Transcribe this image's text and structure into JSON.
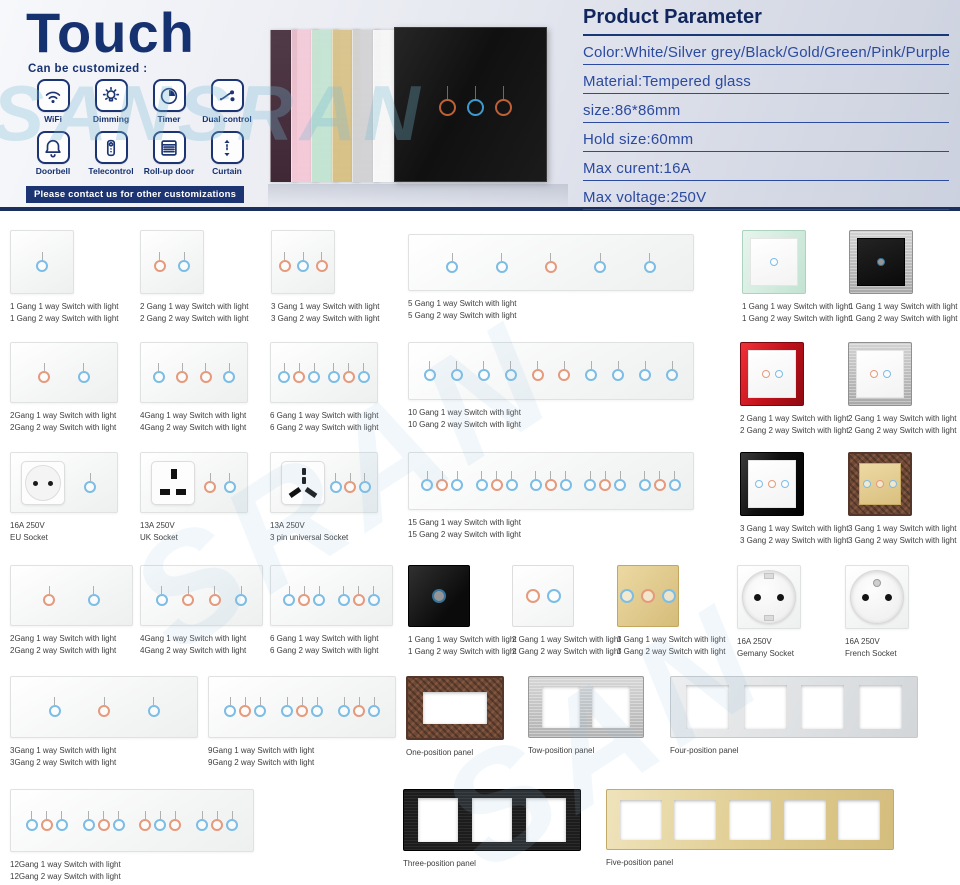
{
  "header": {
    "title": "Touch",
    "customize_label": "Can be customized :",
    "features": [
      {
        "icon": "wifi-icon",
        "label": "WiFi"
      },
      {
        "icon": "dimming-icon",
        "label": "Dimming"
      },
      {
        "icon": "timer-icon",
        "label": "Timer"
      },
      {
        "icon": "dual-control-icon",
        "label": "Dual control"
      },
      {
        "icon": "doorbell-icon",
        "label": "Doorbell"
      },
      {
        "icon": "telecontrol-icon",
        "label": "Telecontrol"
      },
      {
        "icon": "rollup-door-icon",
        "label": "Roll-up door"
      },
      {
        "icon": "curtain-icon",
        "label": "Curtain"
      }
    ],
    "banner": "Please contact us for other customizations"
  },
  "parameters": {
    "title": "Product Parameter",
    "rows": [
      "Color:White/Silver grey/Black/Gold/Green/Pink/Purple",
      "Material:Tempered glass",
      "size:86*86mm",
      "Hold size:60mm",
      "Max curent:16A",
      "Max voltage:250V"
    ]
  },
  "watermarks": {
    "header": "SANSRAN",
    "grid": [
      "SRAN",
      "SAN"
    ]
  },
  "hero": {
    "panel_colors": [
      "#402735",
      "#f4c9d7",
      "#c3e4d2",
      "#d8c186",
      "#d2d2d4",
      "#f7f7f7"
    ],
    "main_panel_color": "#141414",
    "ring_colors": [
      "#c06034",
      "#3b9bd0",
      "#c06034"
    ]
  },
  "colors": {
    "navy": "#1c3572",
    "param_blue": "#2b4aa0",
    "ring_blue": "#7cbde6",
    "ring_orange": "#e69a7c",
    "ring_dim_blue": "#35759c"
  },
  "grid": {
    "rows": [
      {
        "items": [
          {
            "type": "switch",
            "circles": [
              "blue"
            ],
            "caption": [
              "1 Gang 1 way Switch with light",
              "1 Gang 2 way Switch with light"
            ]
          },
          {
            "type": "switch",
            "circles": [
              "orange",
              "blue"
            ],
            "caption": [
              "2 Gang 1 way Switch with light",
              "2 Gang 2 way Switch with light"
            ]
          },
          {
            "type": "switch",
            "circles": [
              "orange",
              "blue",
              "orange"
            ],
            "caption": [
              "3 Gang 1 way Switch with light",
              "3 Gang 2 way Switch with light"
            ]
          },
          {
            "type": "switch",
            "circles": [
              "blue",
              "blue",
              "orange",
              "blue",
              "blue"
            ],
            "caption": [
              "5 Gang 1 way Switch with light",
              "5 Gang 2 way Switch with light"
            ]
          },
          {
            "type": "framed",
            "frame": "mint",
            "inner": "white",
            "circles": [
              "blue"
            ],
            "caption": [
              "1 Gang 1 way Switch with light",
              "1 Gang 2 way Switch with light"
            ]
          },
          {
            "type": "framed",
            "frame": "steel",
            "inner": "black",
            "circles": [
              "blue"
            ],
            "caption": [
              "1 Gang 1 way Switch with light",
              "1 Gang 2 way Switch with light"
            ]
          }
        ]
      },
      {
        "items": [
          {
            "type": "switch",
            "circles": [
              "orange",
              "blue"
            ],
            "caption": [
              "2Gang 1 way Switch with light",
              "2Gang 2 way Switch with light"
            ]
          },
          {
            "type": "switch",
            "circles": [
              "blue",
              "orange",
              "orange",
              "blue"
            ],
            "caption": [
              "4Gang 1 way Switch with light",
              "4Gang 2 way Switch with light"
            ]
          },
          {
            "type": "switch",
            "groups": [
              [
                "blue",
                "orange",
                "blue"
              ],
              [
                "blue",
                "orange",
                "blue"
              ]
            ],
            "caption": [
              "6 Gang 1 way Switch with light",
              "6 Gang 2 way Switch with light"
            ]
          },
          {
            "type": "switch",
            "circles": [
              "blue",
              "blue",
              "blue",
              "blue",
              "orange",
              "orange",
              "blue",
              "blue",
              "blue",
              "blue"
            ],
            "caption": [
              "10 Gang 1 way Switch with light",
              "10 Gang 2 way Switch with light"
            ]
          },
          {
            "type": "framed",
            "frame": "red",
            "inner": "white",
            "circles": [
              "orange",
              "blue"
            ],
            "caption": [
              "2 Gang 1 way Switch with light",
              "2 Gang 2 way Switch with light"
            ]
          },
          {
            "type": "framed",
            "frame": "steel",
            "inner": "white",
            "circles": [
              "orange",
              "blue"
            ],
            "caption": [
              "2 Gang 1 way Switch with light",
              "2 Gang 2 way Switch with light"
            ]
          }
        ]
      },
      {
        "items": [
          {
            "type": "switch",
            "socket": "eu",
            "circles": [
              "blue"
            ],
            "caption": [
              "16A 250V",
              "EU Socket"
            ]
          },
          {
            "type": "switch",
            "socket": "uk",
            "circles": [
              "orange",
              "blue"
            ],
            "caption": [
              "13A 250V",
              "UK Socket"
            ]
          },
          {
            "type": "switch",
            "socket": "universal",
            "circles": [
              "blue",
              "orange",
              "blue"
            ],
            "caption": [
              "13A 250V",
              "3 pin universal Socket"
            ]
          },
          {
            "type": "switch",
            "groups": [
              [
                "blue",
                "orange",
                "blue"
              ],
              [
                "blue",
                "orange",
                "blue"
              ],
              [
                "blue",
                "orange",
                "blue"
              ],
              [
                "blue",
                "orange",
                "blue"
              ],
              [
                "blue",
                "orange",
                "blue"
              ]
            ],
            "caption": [
              "15 Gang 1 way Switch with light",
              "15 Gang 2 way Switch with light"
            ]
          },
          {
            "type": "framed",
            "frame": "black",
            "inner": "white",
            "circles": [
              "blue",
              "orange",
              "blue"
            ],
            "caption": [
              "3 Gang 1 way Switch with light",
              "3 Gang 2 way Switch with light"
            ]
          },
          {
            "type": "framed",
            "frame": "bronze",
            "inner": "gold",
            "circles": [
              "blue",
              "orange",
              "blue"
            ],
            "caption": [
              "3 Gang 1 way Switch with light",
              "3 Gang 2 way Switch with light"
            ]
          }
        ]
      },
      {
        "items": [
          {
            "type": "switch",
            "circles": [
              "orange",
              "blue"
            ],
            "caption": [
              "2Gang 1 way Switch with light",
              "2Gang 2 way Switch with light"
            ]
          },
          {
            "type": "switch",
            "circles": [
              "blue",
              "orange",
              "orange",
              "blue"
            ],
            "caption": [
              "4Gang 1 way Switch with light",
              "4Gang 2 way Switch with light"
            ]
          },
          {
            "type": "switch",
            "groups": [
              [
                "blue",
                "orange",
                "blue"
              ],
              [
                "blue",
                "orange",
                "blue"
              ]
            ],
            "caption": [
              "6 Gang 1 way Switch with light",
              "6 Gang 2 way Switch with light"
            ]
          },
          {
            "type": "square",
            "color": "black",
            "circles": [
              "blue"
            ],
            "caption": [
              "1 Gang 1 way Switch with light",
              "1 Gang 2 way Switch with light"
            ]
          },
          {
            "type": "square",
            "color": "white",
            "circles": [
              "orange",
              "blue"
            ],
            "caption": [
              "2 Gang 1 way Switch with light",
              "2 Gang 2 way Switch with light"
            ]
          },
          {
            "type": "square",
            "color": "gold",
            "circles": [
              "blue",
              "orange",
              "blue"
            ],
            "caption": [
              "3 Gang 1 way Switch with light",
              "3 Gang 2 way Switch with light"
            ]
          },
          {
            "type": "socket",
            "variant": "german",
            "caption": [
              "16A 250V",
              "Gemany Socket"
            ]
          },
          {
            "type": "socket",
            "variant": "french",
            "caption": [
              "16A 250V",
              "French Socket"
            ]
          }
        ]
      },
      {
        "items": [
          {
            "type": "switch",
            "circles": [
              "blue",
              "orange",
              "blue"
            ],
            "caption": [
              "3Gang 1 way Switch with light",
              "3Gang 2 way Switch with light"
            ]
          },
          {
            "type": "switch",
            "groups": [
              [
                "blue",
                "orange",
                "blue"
              ],
              [
                "blue",
                "orange",
                "blue"
              ],
              [
                "blue",
                "orange",
                "blue"
              ]
            ],
            "caption": [
              "9Gang 1 way Switch with light",
              "9Gang 2 way Switch with light"
            ]
          },
          {
            "type": "positions",
            "style": "bronze",
            "count": 1,
            "caption": [
              "One-position panel"
            ]
          },
          {
            "type": "positions",
            "style": "steel",
            "count": 2,
            "caption": [
              "Tow-position panel"
            ]
          },
          {
            "type": "positions",
            "style": "lightsilver",
            "count": 4,
            "caption": [
              "Four-position panel"
            ]
          }
        ]
      },
      {
        "items": [
          {
            "type": "switch",
            "groups": [
              [
                "blue",
                "orange",
                "blue"
              ],
              [
                "blue",
                "orange",
                "blue"
              ],
              [
                "orange",
                "blue",
                "orange"
              ],
              [
                "blue",
                "orange",
                "blue"
              ]
            ],
            "caption": [
              "12Gang 1 way Switch with light",
              "12Gang 2 way Switch with light"
            ]
          },
          {
            "type": "positions",
            "style": "black",
            "count": 3,
            "caption": [
              "Three-position panel"
            ]
          },
          {
            "type": "positions",
            "style": "gold",
            "count": 5,
            "caption": [
              "Five-position panel"
            ]
          }
        ]
      }
    ]
  }
}
